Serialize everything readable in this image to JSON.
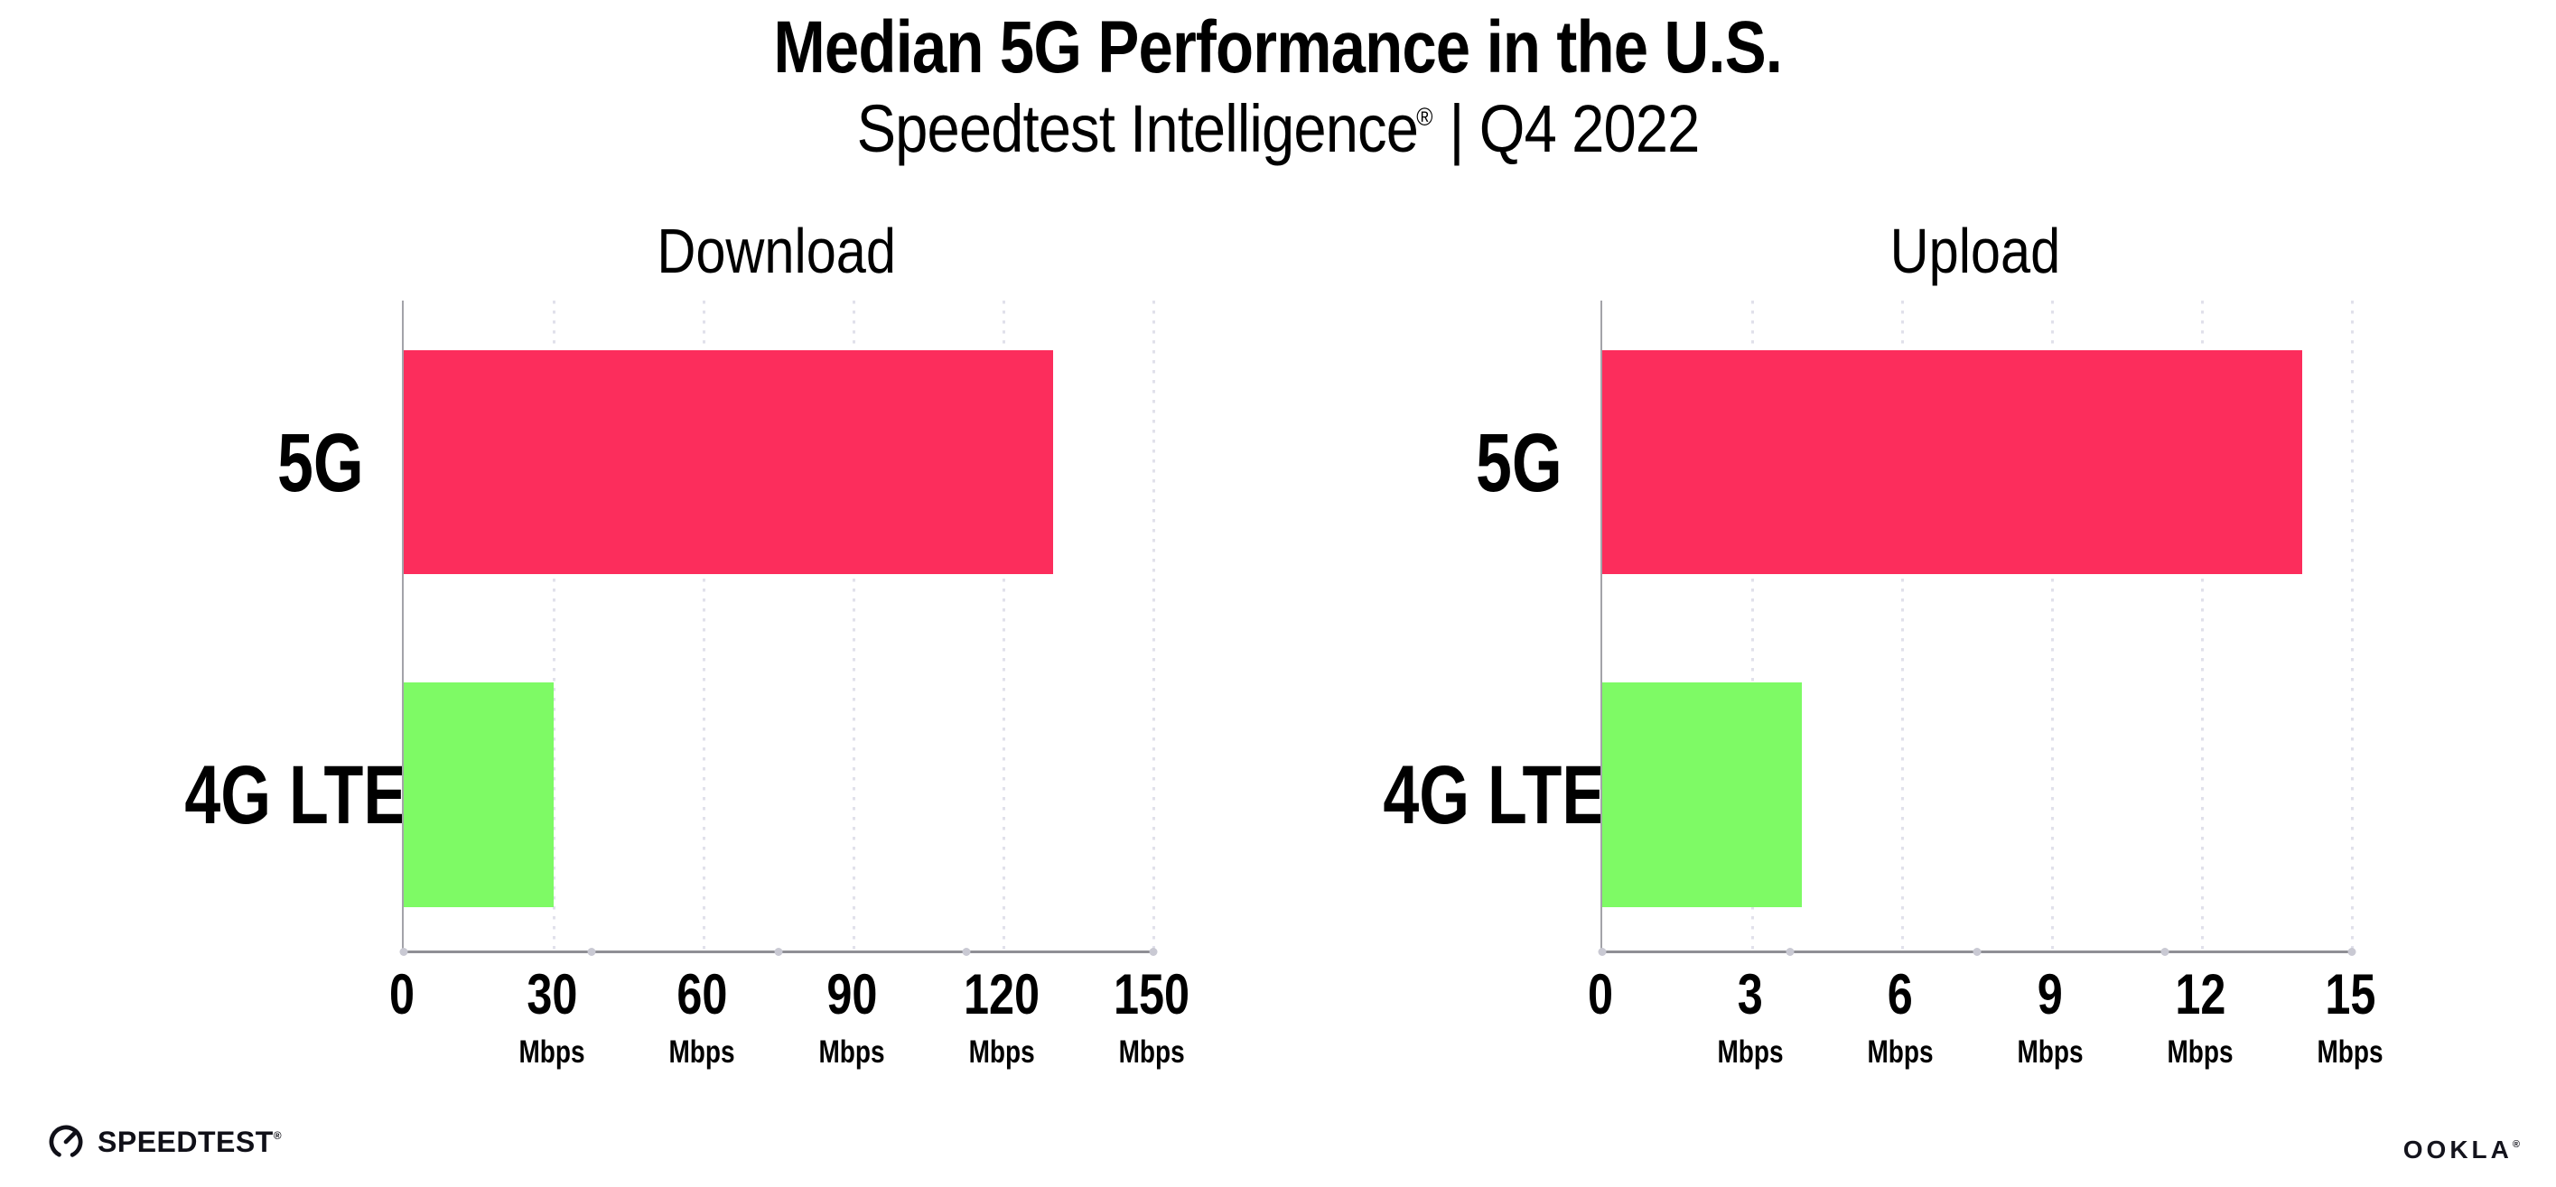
{
  "header": {
    "title": "Median 5G Performance in the U.S.",
    "subtitle_brand": "Speedtest Intelligence",
    "subtitle_reg": "®",
    "subtitle_tail": " | Q4 2022"
  },
  "chart_data": [
    {
      "type": "bar",
      "orientation": "horizontal",
      "title": "Download",
      "categories": [
        "5G",
        "4G LTE"
      ],
      "values": [
        130,
        30
      ],
      "unit": "Mbps",
      "xlim": [
        0,
        150.0
      ],
      "tick_step": 30,
      "ticks": [
        {
          "label": "0",
          "unit": ""
        },
        {
          "label": "30",
          "unit": "Mbps"
        },
        {
          "label": "60",
          "unit": "Mbps"
        },
        {
          "label": "90",
          "unit": "Mbps"
        },
        {
          "label": "120",
          "unit": "Mbps"
        },
        {
          "label": "150",
          "unit": "Mbps"
        }
      ],
      "bar_colors": [
        "#fc2d5c",
        "#7efa65"
      ],
      "grid": "dotted vertical gridlines at labeled ticks",
      "legend_position": "none"
    },
    {
      "type": "bar",
      "orientation": "horizontal",
      "title": "Upload",
      "categories": [
        "5G",
        "4G LTE"
      ],
      "values": [
        14,
        4
      ],
      "unit": "Mbps",
      "xlim": [
        0,
        15
      ],
      "tick_step": 3,
      "ticks": [
        {
          "label": "0",
          "unit": ""
        },
        {
          "label": "3",
          "unit": "Mbps"
        },
        {
          "label": "6",
          "unit": "Mbps"
        },
        {
          "label": "9",
          "unit": "Mbps"
        },
        {
          "label": "12",
          "unit": "Mbps"
        },
        {
          "label": "15",
          "unit": "Mbps"
        }
      ],
      "bar_colors": [
        "#fc2d5c",
        "#7efa65"
      ],
      "grid": "dotted vertical gridlines at labeled ticks",
      "legend_position": "none"
    }
  ],
  "footer": {
    "speedtest_label": "SPEEDTEST",
    "speedtest_reg": "®",
    "ookla_label": "OOKLA",
    "ookla_reg": "®"
  }
}
